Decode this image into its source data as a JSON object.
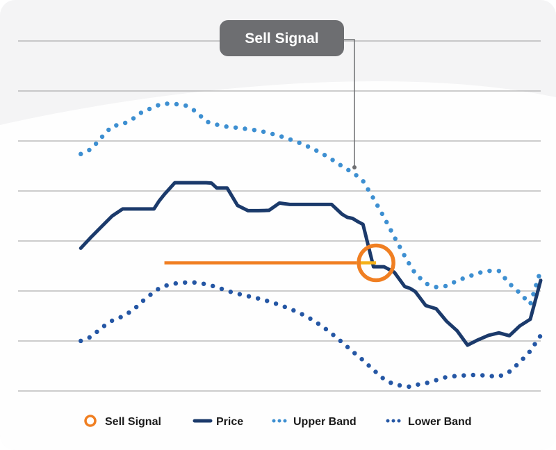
{
  "chart_data": {
    "type": "line",
    "title": "",
    "xlabel": "",
    "ylabel": "",
    "grid": true,
    "legend_position": "bottom",
    "annotation": {
      "label": "Sell Signal",
      "x": 68.5,
      "y": 36.6
    },
    "sell_signal_reference": {
      "x_start": 28,
      "x_end": 68.5,
      "y": 36.6
    },
    "x": [
      0,
      4,
      6,
      8,
      9,
      12,
      14,
      16,
      18,
      20,
      22,
      24,
      26,
      27,
      28,
      30,
      32,
      34,
      36,
      37,
      38,
      40,
      42,
      44,
      46,
      48,
      50,
      52,
      54,
      56,
      58,
      60,
      62,
      63,
      64,
      65,
      66,
      68,
      70,
      72,
      74,
      75,
      76,
      78,
      80,
      82,
      84,
      86,
      88,
      90,
      92,
      94,
      96,
      98,
      100
    ],
    "series": [
      {
        "name": "Price",
        "color": "#1b3a6b",
        "style": "solid",
        "values": [
          null,
          null,
          null,
          null,
          null,
          40.8,
          44,
          47,
          50,
          52,
          52,
          52,
          52,
          54.3,
          56.2,
          59.5,
          59.5,
          59.5,
          59.5,
          59.4,
          58,
          58,
          53,
          51.5,
          51.5,
          51.6,
          53.7,
          53.3,
          53.3,
          53.3,
          53.3,
          53.3,
          50.5,
          49.6,
          49.3,
          48.4,
          47.6,
          35.5,
          35.5,
          33.9,
          29.8,
          29.3,
          28.4,
          24.4,
          23.5,
          19.9,
          17.2,
          13.1,
          14.6,
          15.9,
          16.6,
          15.8,
          18.6,
          20.5,
          31.6
        ]
      },
      {
        "name": "Upper Band",
        "color": "#3d8fd1",
        "style": "dotted",
        "values": [
          null,
          null,
          null,
          null,
          null,
          67.7,
          69.1,
          72.5,
          75.7,
          76.2,
          77.8,
          80,
          81,
          81.8,
          82.1,
          82,
          81.6,
          79.9,
          77,
          76.5,
          76.1,
          75.5,
          75.2,
          74.8,
          74.4,
          73.7,
          72.9,
          71.9,
          70.8,
          69.5,
          68,
          66.2,
          64.2,
          63.3,
          62.4,
          61.3,
          60,
          55,
          49.7,
          44,
          38.5,
          35.9,
          33.6,
          30.7,
          29.7,
          30,
          31.5,
          32.6,
          33.7,
          34.3,
          34.3,
          30.7,
          28,
          24.8,
          34.5
        ]
      },
      {
        "name": "Lower Band",
        "color": "#2456a4",
        "style": "dotted",
        "values": [
          null,
          null,
          null,
          null,
          null,
          14.3,
          15.5,
          18.1,
          20.1,
          21.3,
          23.1,
          25.9,
          28.3,
          29.3,
          30,
          30.7,
          31,
          31,
          30.5,
          30.1,
          29.7,
          28.6,
          27.8,
          27.1,
          26.4,
          25.6,
          24.6,
          23.5,
          22.2,
          20.6,
          18.7,
          16.4,
          13.9,
          12.6,
          11.3,
          10,
          8.8,
          6,
          3.4,
          1.8,
          1.4,
          1.2,
          1.7,
          2.2,
          3.1,
          4,
          4.3,
          4.5,
          4.6,
          4.3,
          4.1,
          5.5,
          8.2,
          11.4,
          15.9
        ]
      }
    ]
  },
  "legend": {
    "items": [
      {
        "key": "sell",
        "label": "Sell Signal",
        "color": "#f07f22"
      },
      {
        "key": "price",
        "label": "Price",
        "color": "#1b3a6b"
      },
      {
        "key": "upper",
        "label": "Upper Band",
        "color": "#3d8fd1"
      },
      {
        "key": "lower",
        "label": "Lower Band",
        "color": "#2456a4"
      }
    ]
  },
  "callout": {
    "label": "Sell Signal",
    "background": "#6d6e71"
  },
  "colors": {
    "grid": "#9a9a9a",
    "sell_line": "#f07f22",
    "sell_line_tail": "#f5b21a",
    "sell_circle": "#f07f22"
  }
}
